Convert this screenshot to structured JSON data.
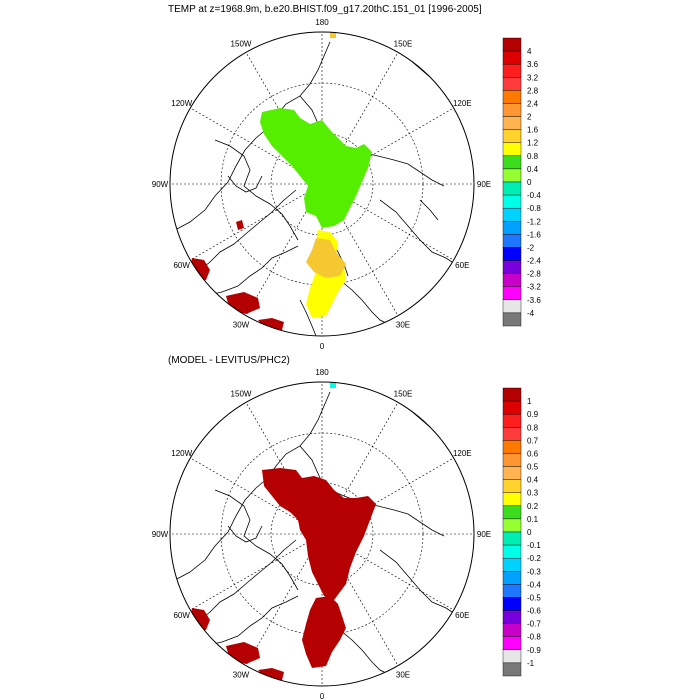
{
  "top_panel": {
    "title": "TEMP at z=1968.9m, b.e20.BHIST.f09_g17.20thC.151_01 [1996-2005]",
    "lon_labels": [
      "180",
      "150E",
      "120E",
      "90E",
      "60E",
      "30E",
      "0",
      "30W",
      "60W",
      "90W",
      "120W",
      "150W"
    ],
    "colorbar": {
      "labels": [
        "4",
        "3.6",
        "3.2",
        "2.8",
        "2.4",
        "2",
        "1.6",
        "1.2",
        "0.8",
        "0.4",
        "0",
        "-0.4",
        "-0.8",
        "-1.2",
        "-1.6",
        "-2",
        "-2.4",
        "-2.8",
        "-3.2",
        "-3.6",
        "-4"
      ],
      "colors": [
        "#b40000",
        "#dc0000",
        "#ff1e1e",
        "#ff3c3c",
        "#ff7800",
        "#ff9632",
        "#ffb450",
        "#ffd22d",
        "#ffff00",
        "#3cdc1e",
        "#96ff32",
        "#00eeb4",
        "#00ffe6",
        "#00d2ff",
        "#00a0ff",
        "#1e78ff",
        "#0000ff",
        "#7800dc",
        "#c800c8",
        "#ff00ff",
        "#e6e6e6",
        "#787878"
      ]
    }
  },
  "bottom_panel": {
    "title": "(MODEL - LEVITUS/PHC2)",
    "lon_labels": [
      "180",
      "150E",
      "120E",
      "90E",
      "60E",
      "30E",
      "0",
      "30W",
      "60W",
      "90W",
      "120W",
      "150W"
    ],
    "colorbar": {
      "labels": [
        "1",
        "0.9",
        "0.8",
        "0.7",
        "0.6",
        "0.5",
        "0.4",
        "0.3",
        "0.2",
        "0.1",
        "0",
        "-0.1",
        "-0.2",
        "-0.3",
        "-0.4",
        "-0.5",
        "-0.6",
        "-0.7",
        "-0.8",
        "-0.9",
        "-1"
      ],
      "colors": [
        "#b40000",
        "#dc0000",
        "#ff1e1e",
        "#ff3c3c",
        "#ff7800",
        "#ff9632",
        "#ffb450",
        "#ffd22d",
        "#ffff00",
        "#3cdc1e",
        "#96ff32",
        "#00eeb4",
        "#00ffe6",
        "#00d2ff",
        "#00a0ff",
        "#1e78ff",
        "#0000ff",
        "#7800dc",
        "#c800c8",
        "#ff00ff",
        "#e6e6e6",
        "#787878"
      ]
    }
  },
  "fill_colors": {
    "top_green": "#55ee00",
    "top_yellow": "#ffff00",
    "top_orange": "#f5c832",
    "top_dark_red": "#b40000",
    "bottom_dark_red": "#b40000"
  }
}
